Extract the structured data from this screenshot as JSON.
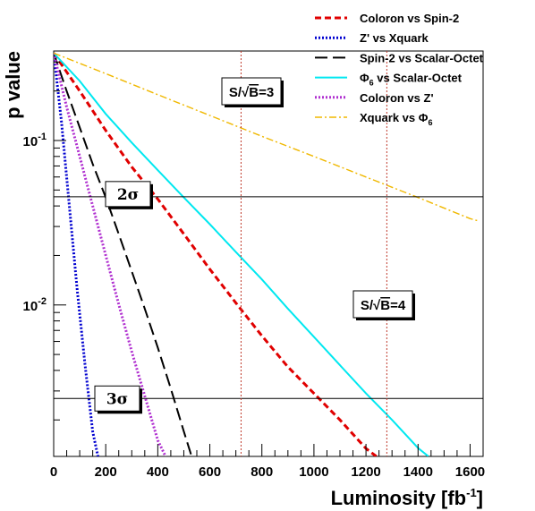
{
  "chart_data": {
    "type": "line",
    "xlabel_main": "Luminosity [fb",
    "xlabel_sup": "-1",
    "xlabel_end": "]",
    "ylabel": "p value",
    "xlim": [
      0,
      1650
    ],
    "ylim": [
      0.0012,
      0.35
    ],
    "yscale": "log",
    "x_ticks": [
      0,
      200,
      400,
      600,
      800,
      1000,
      1200,
      1400,
      1600
    ],
    "y_ticks": [
      {
        "value": 0.1,
        "base": "10",
        "exp": "-1"
      },
      {
        "value": 0.01,
        "base": "10",
        "exp": "-2"
      }
    ],
    "series": [
      {
        "name": "Coloron vs Spin-2",
        "color": "#e00000",
        "dash": "dashed",
        "x": [
          0,
          100,
          200,
          300,
          400,
          500,
          600,
          700,
          800,
          900,
          1000,
          1100,
          1200,
          1240
        ],
        "y": [
          0.34,
          0.2,
          0.115,
          0.069,
          0.044,
          0.027,
          0.0165,
          0.0103,
          0.0065,
          0.0042,
          0.0029,
          0.002,
          0.00134,
          0.0012
        ]
      },
      {
        "name": "Z' vs Xquark",
        "color": "#0000d0",
        "dash": "dotted",
        "x": [
          0,
          30,
          60,
          90,
          120,
          150,
          170
        ],
        "y": [
          0.34,
          0.13,
          0.04,
          0.0125,
          0.0044,
          0.0017,
          0.0012
        ]
      },
      {
        "name": "Spin-2 vs Scalar-Octet",
        "color": "#000000",
        "dash": "longdash",
        "x": [
          0,
          50,
          100,
          150,
          200,
          250,
          300,
          350,
          400,
          450,
          500,
          530
        ],
        "y": [
          0.34,
          0.2,
          0.12,
          0.072,
          0.045,
          0.027,
          0.016,
          0.0095,
          0.0055,
          0.0031,
          0.0017,
          0.0012
        ]
      },
      {
        "name": "Φ6 vs Scalar-Octet",
        "color": "#00e8f0",
        "dash": "solid",
        "x": [
          0,
          100,
          200,
          300,
          400,
          500,
          600,
          700,
          800,
          900,
          1000,
          1100,
          1200,
          1300,
          1400,
          1440
        ],
        "y": [
          0.34,
          0.23,
          0.145,
          0.097,
          0.066,
          0.045,
          0.031,
          0.021,
          0.0143,
          0.0095,
          0.0064,
          0.0043,
          0.0029,
          0.002,
          0.00135,
          0.0012
        ]
      },
      {
        "name": "Coloron vs Z'",
        "color": "#b030d0",
        "dash": "dotted",
        "x": [
          0,
          50,
          100,
          150,
          200,
          250,
          300,
          350,
          400,
          430
        ],
        "y": [
          0.34,
          0.16,
          0.08,
          0.04,
          0.02,
          0.0101,
          0.0052,
          0.0028,
          0.0015,
          0.0012
        ]
      },
      {
        "name": "Xquark vs Φ6",
        "color": "#f0b800",
        "dash": "dashdot",
        "x": [
          0,
          200,
          400,
          600,
          800,
          1000,
          1200,
          1400,
          1600,
          1630
        ],
        "y": [
          0.34,
          0.255,
          0.19,
          0.142,
          0.106,
          0.08,
          0.06,
          0.045,
          0.0335,
          0.0325
        ]
      }
    ],
    "hlines": [
      {
        "value": 0.0455,
        "label": "2σ"
      },
      {
        "value": 0.0027,
        "label": "3σ"
      }
    ],
    "vlines": [
      {
        "value": 720,
        "label_prefix": "S/",
        "label_radical": "√",
        "label_b": "B",
        "label_suffix": "=3"
      },
      {
        "value": 1280,
        "label_prefix": "S/",
        "label_radical": "√",
        "label_b": "B",
        "label_suffix": "=4"
      }
    ],
    "legend_placement": "top-right",
    "grid": false
  }
}
